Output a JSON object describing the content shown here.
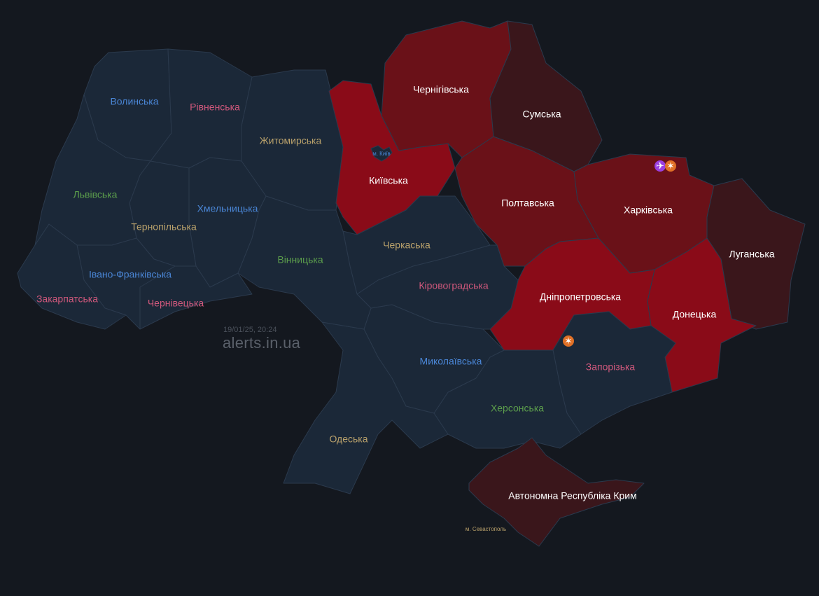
{
  "timestamp": "19/01/25, 20:24",
  "brand": "alerts.in.ua",
  "colors": {
    "background": "#14181f",
    "no_alert": "#1b2838",
    "alert_high": "#8a0b18",
    "alert_medium": "#6a1118",
    "alert_low": "#3a161b",
    "border": "#2b3a4d",
    "label_white": "#ffffff",
    "label_green": "#5c9e4c",
    "label_blue": "#4a86d6",
    "label_pink": "#d0587c",
    "label_tan": "#b9a16b"
  },
  "regions": [
    {
      "name": "Волинська",
      "status": "none",
      "label_color": "label_blue"
    },
    {
      "name": "Рівненська",
      "status": "none",
      "label_color": "label_pink"
    },
    {
      "name": "Житомирська",
      "status": "none",
      "label_color": "label_tan"
    },
    {
      "name": "Київська",
      "status": "high",
      "label_color": "label_white"
    },
    {
      "name": "Чернігівська",
      "status": "medium",
      "label_color": "label_white"
    },
    {
      "name": "Сумська",
      "status": "low",
      "label_color": "label_white"
    },
    {
      "name": "Полтавська",
      "status": "medium",
      "label_color": "label_white"
    },
    {
      "name": "Харківська",
      "status": "medium",
      "label_color": "label_white"
    },
    {
      "name": "Луганська",
      "status": "low",
      "label_color": "label_white"
    },
    {
      "name": "Донецька",
      "status": "high",
      "label_color": "label_white"
    },
    {
      "name": "Дніпропетровська",
      "status": "high",
      "label_color": "label_white"
    },
    {
      "name": "Запорізька",
      "status": "none",
      "label_color": "label_pink"
    },
    {
      "name": "Херсонська",
      "status": "none",
      "label_color": "label_green"
    },
    {
      "name": "Автономна Республіка Крим",
      "status": "low",
      "label_color": "label_white"
    },
    {
      "name": "Миколаївська",
      "status": "none",
      "label_color": "label_blue"
    },
    {
      "name": "Одеська",
      "status": "none",
      "label_color": "label_tan"
    },
    {
      "name": "Кіровоградська",
      "status": "none",
      "label_color": "label_pink"
    },
    {
      "name": "Черкаська",
      "status": "none",
      "label_color": "label_tan"
    },
    {
      "name": "Вінницька",
      "status": "none",
      "label_color": "label_green"
    },
    {
      "name": "Хмельницька",
      "status": "none",
      "label_color": "label_blue"
    },
    {
      "name": "Тернопільська",
      "status": "none",
      "label_color": "label_tan"
    },
    {
      "name": "Львівська",
      "status": "none",
      "label_color": "label_green"
    },
    {
      "name": "Івано-Франківська",
      "status": "none",
      "label_color": "label_blue"
    },
    {
      "name": "Чернівецька",
      "status": "none",
      "label_color": "label_pink"
    },
    {
      "name": "Закарпатська",
      "status": "none",
      "label_color": "label_pink"
    }
  ],
  "cities": [
    {
      "name": "м. Київ",
      "status": "none",
      "label_color": "label_blue"
    },
    {
      "name": "м. Севастополь",
      "status": "low",
      "label_color": "label_tan"
    }
  ],
  "threat_icons": [
    {
      "type": "drone-icon",
      "region": "Харківська",
      "color": "#9b3fe0"
    },
    {
      "type": "artillery-icon",
      "region": "Харківська",
      "color": "#e07026"
    },
    {
      "type": "artillery-icon",
      "region": "Дніпропетровська",
      "color": "#e07026"
    }
  ]
}
